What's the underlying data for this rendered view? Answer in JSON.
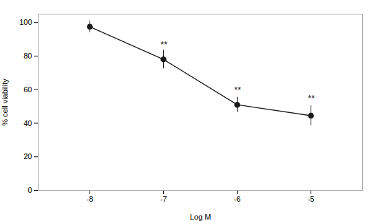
{
  "chart_data": {
    "type": "line",
    "x": [
      -8,
      -7,
      -6,
      -5
    ],
    "values": [
      97.5,
      78.0,
      51.0,
      44.5
    ],
    "errors": [
      3.5,
      5.5,
      4.5,
      6.0
    ],
    "xlabel": "Log M",
    "ylabel": "% cell viability",
    "xlim": [
      -8.7,
      -4.3
    ],
    "xticks": [
      -8,
      -7,
      -6,
      -5
    ],
    "ylim": [
      0,
      105
    ],
    "yticks": [
      0,
      20,
      40,
      60,
      80,
      100
    ],
    "color": "#1a1a1a",
    "marker": "circle",
    "grid": false,
    "annotations": [
      {
        "text": "**",
        "x": -7,
        "y": 85
      },
      {
        "text": "**",
        "x": -6,
        "y": 58
      },
      {
        "text": "**",
        "x": -5,
        "y": 53
      }
    ]
  }
}
